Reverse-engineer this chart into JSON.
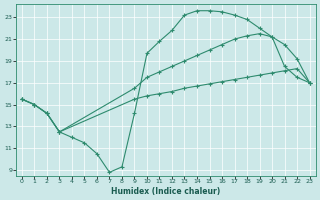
{
  "xlabel": "Humidex (Indice chaleur)",
  "bg_color": "#cce8e8",
  "line_color": "#2e8b6e",
  "grid_color": "#ffffff",
  "xlim": [
    -0.5,
    23.5
  ],
  "ylim": [
    8.5,
    24.2
  ],
  "xticks": [
    0,
    1,
    2,
    3,
    4,
    5,
    6,
    7,
    8,
    9,
    10,
    11,
    12,
    13,
    14,
    15,
    16,
    17,
    18,
    19,
    20,
    21,
    22,
    23
  ],
  "yticks": [
    9,
    11,
    13,
    15,
    17,
    19,
    21,
    23
  ],
  "curve1_x": [
    0,
    1,
    2,
    3,
    4,
    5,
    6,
    7,
    8,
    9,
    10,
    11,
    12,
    13,
    14,
    15,
    16,
    17,
    18,
    19,
    20,
    21,
    22,
    23
  ],
  "curve1_y": [
    15.5,
    15.0,
    14.2,
    12.5,
    12.0,
    11.5,
    10.5,
    8.8,
    9.3,
    14.2,
    19.7,
    20.8,
    21.8,
    23.2,
    23.6,
    23.6,
    23.5,
    23.2,
    22.8,
    22.0,
    21.2,
    18.5,
    17.5,
    17.0
  ],
  "curve2_x": [
    0,
    1,
    2,
    3,
    9,
    10,
    11,
    12,
    13,
    14,
    15,
    16,
    17,
    18,
    19,
    20,
    21,
    22,
    23
  ],
  "curve2_y": [
    15.5,
    15.0,
    14.2,
    12.5,
    16.5,
    17.5,
    18.0,
    18.5,
    19.0,
    19.5,
    20.0,
    20.5,
    21.0,
    21.3,
    21.5,
    21.2,
    20.5,
    19.2,
    17.0
  ],
  "curve3_x": [
    0,
    1,
    2,
    3,
    9,
    10,
    11,
    12,
    13,
    14,
    15,
    16,
    17,
    18,
    19,
    20,
    21,
    22,
    23
  ],
  "curve3_y": [
    15.5,
    15.0,
    14.2,
    12.5,
    15.5,
    15.8,
    16.0,
    16.2,
    16.5,
    16.7,
    16.9,
    17.1,
    17.3,
    17.5,
    17.7,
    17.9,
    18.1,
    18.3,
    17.0
  ]
}
